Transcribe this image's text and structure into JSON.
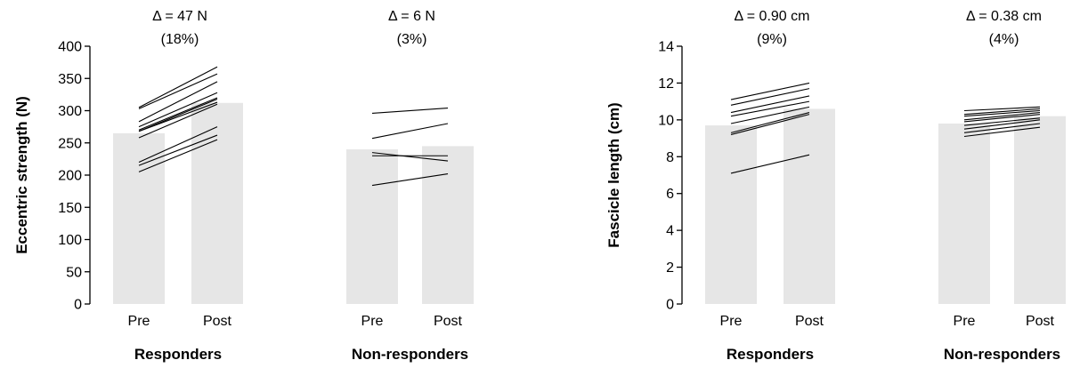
{
  "chart_data": [
    {
      "type": "bar",
      "ylabel": "Eccentric strength (N)",
      "ylim": [
        0,
        400
      ],
      "yticks": [
        0,
        50,
        100,
        150,
        200,
        250,
        300,
        350,
        400
      ],
      "groups": [
        {
          "label": "Responders",
          "conditions": [
            "Pre",
            "Post"
          ],
          "means": [
            265,
            312
          ],
          "annotation": {
            "delta": "Δ = 47 N",
            "pct": "(18%)"
          },
          "individuals": [
            [
              305,
              368
            ],
            [
              303,
              357
            ],
            [
              283,
              345
            ],
            [
              275,
              328
            ],
            [
              270,
              320
            ],
            [
              268,
              318
            ],
            [
              268,
              313
            ],
            [
              258,
              310
            ],
            [
              220,
              275
            ],
            [
              215,
              262
            ],
            [
              205,
              255
            ]
          ]
        },
        {
          "label": "Non-responders",
          "conditions": [
            "Pre",
            "Post"
          ],
          "means": [
            240,
            245
          ],
          "annotation": {
            "delta": "Δ = 6 N",
            "pct": "(3%)"
          },
          "individuals": [
            [
              296,
              304
            ],
            [
              257,
              280
            ],
            [
              235,
              222
            ],
            [
              230,
              230
            ],
            [
              184,
              202
            ]
          ]
        }
      ]
    },
    {
      "type": "bar",
      "ylabel": "Fascicle length (cm)",
      "ylim": [
        0,
        14
      ],
      "yticks": [
        0,
        2,
        4,
        6,
        8,
        10,
        12,
        14
      ],
      "groups": [
        {
          "label": "Responders",
          "conditions": [
            "Pre",
            "Post"
          ],
          "means": [
            9.7,
            10.6
          ],
          "annotation": {
            "delta": "Δ = 0.90 cm",
            "pct": "(9%)"
          },
          "individuals": [
            [
              11.1,
              12.0
            ],
            [
              10.8,
              11.7
            ],
            [
              10.4,
              11.3
            ],
            [
              10.2,
              11.0
            ],
            [
              9.8,
              10.7
            ],
            [
              9.3,
              10.4
            ],
            [
              9.2,
              10.3
            ],
            [
              7.1,
              8.1
            ]
          ]
        },
        {
          "label": "Non-responders",
          "conditions": [
            "Pre",
            "Post"
          ],
          "means": [
            9.8,
            10.2
          ],
          "annotation": {
            "delta": "Δ = 0.38 cm",
            "pct": "(4%)"
          },
          "individuals": [
            [
              10.5,
              10.7
            ],
            [
              10.3,
              10.6
            ],
            [
              10.2,
              10.5
            ],
            [
              10.0,
              10.4
            ],
            [
              9.9,
              10.3
            ],
            [
              9.7,
              10.1
            ],
            [
              9.5,
              10.0
            ],
            [
              9.3,
              9.8
            ],
            [
              9.1,
              9.6
            ]
          ]
        }
      ]
    }
  ]
}
